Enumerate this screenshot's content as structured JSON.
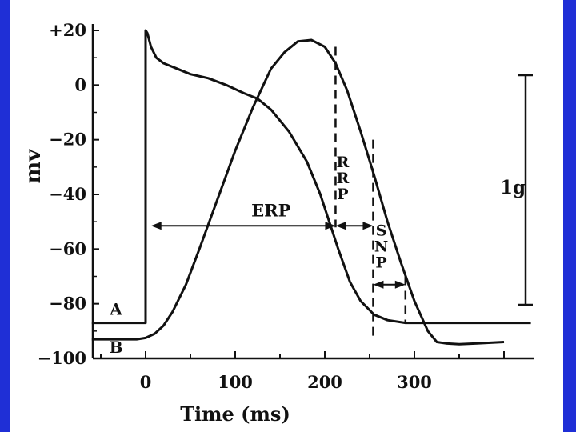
{
  "chart_data": {
    "type": "line",
    "xlabel": "Time (ms)",
    "ylabel": "mv",
    "xlim": [
      -60,
      430
    ],
    "ylim": [
      -100,
      20
    ],
    "x_ticks": [
      0,
      100,
      200,
      300
    ],
    "x_tick_labels": [
      "0",
      "100",
      "200",
      "300"
    ],
    "y_ticks": [
      20,
      0,
      -20,
      -40,
      -60,
      -80,
      -100
    ],
    "y_tick_labels": [
      "+20",
      "0",
      "−20",
      "−40",
      "−60",
      "−80",
      "−100"
    ],
    "series": [
      {
        "name": "A",
        "x": [
          -60,
          0,
          0,
          2,
          6,
          12,
          20,
          35,
          50,
          70,
          90,
          110,
          125,
          140,
          160,
          180,
          195,
          205,
          215,
          228,
          240,
          255,
          270,
          290,
          320,
          360,
          400,
          430
        ],
        "y": [
          -87,
          -87,
          20,
          19,
          14,
          10,
          8,
          6,
          4,
          2.5,
          0,
          -3,
          -5,
          -9,
          -17,
          -28,
          -40,
          -50,
          -60,
          -72,
          -79,
          -84,
          -86,
          -87,
          -87,
          -87,
          -87,
          -87
        ]
      },
      {
        "name": "B",
        "x": [
          -60,
          -10,
          0,
          10,
          20,
          30,
          45,
          60,
          80,
          100,
          120,
          140,
          155,
          170,
          185,
          200,
          212,
          225,
          240,
          255,
          270,
          285,
          300,
          315,
          325,
          335,
          350,
          370,
          400
        ],
        "y": [
          -93,
          -93,
          -92.5,
          -91,
          -88,
          -83,
          -73,
          -60,
          -42,
          -24,
          -8,
          6,
          12,
          16,
          16.5,
          14,
          8,
          -2,
          -17,
          -33,
          -50,
          -65,
          -79,
          -90,
          -94,
          -94.5,
          -94.8,
          -94.5,
          -94
        ]
      }
    ],
    "annotations": [
      {
        "text": "A",
        "x": -33,
        "y": -84
      },
      {
        "text": "B",
        "x": -33,
        "y": -98
      },
      {
        "text": "ERP",
        "x": 140,
        "y": -48,
        "from_x": 6,
        "to_x": 212,
        "at_y": -51.5
      },
      {
        "text": "RRP",
        "x": 220,
        "y": -30,
        "from_x": 212,
        "to_x": 254,
        "at_y": -51.5,
        "lines": [
          "R",
          "R",
          "P"
        ]
      },
      {
        "text": "SNP",
        "x": 263,
        "y": -55,
        "from_x": 254,
        "to_x": 290,
        "at_y": -73,
        "lines": [
          "S",
          "N",
          "P"
        ]
      },
      {
        "text": "1g",
        "x": 415,
        "y": -38
      }
    ],
    "grid": false,
    "legend": "none"
  },
  "colors": {
    "background": "#ffffff",
    "border": "#1f2fd6",
    "ink": "#111111"
  }
}
